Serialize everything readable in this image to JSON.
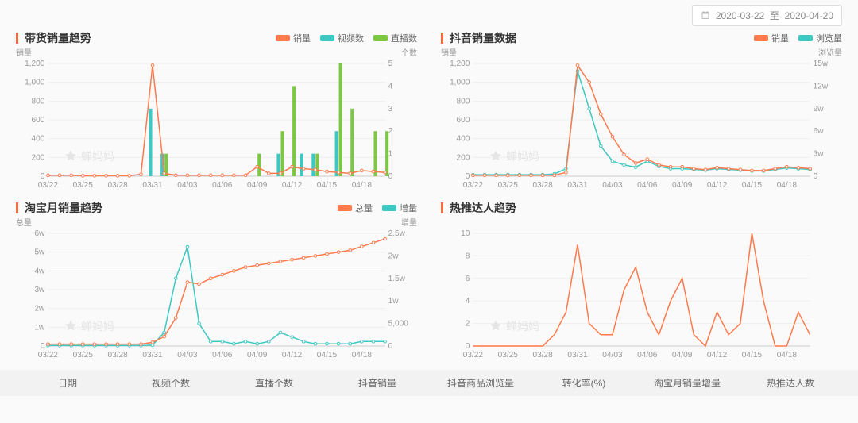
{
  "date_range": {
    "from": "2020-03-22",
    "sep": "至",
    "to": "2020-04-20"
  },
  "colors": {
    "orange": "#ff7b4d",
    "teal": "#3dc9c3",
    "green": "#7cc843",
    "grid": "#eeeeee",
    "axis": "#cccccc",
    "text": "#999999",
    "bg": "#fafafa"
  },
  "x_categories": [
    "03/22",
    "03/25",
    "03/28",
    "03/31",
    "04/03",
    "04/06",
    "04/09",
    "04/12",
    "04/15",
    "04/18"
  ],
  "watermark": "蝉妈妈",
  "chart1": {
    "title": "带货销量趋势",
    "y_left_label": "销量",
    "y_right_label": "个数",
    "legend": [
      {
        "name": "销量",
        "color": "#ff7b4d",
        "type": "line"
      },
      {
        "name": "视频数",
        "color": "#3dc9c3",
        "type": "bar"
      },
      {
        "name": "直播数",
        "color": "#7cc843",
        "type": "bar"
      }
    ],
    "y_left": {
      "min": 0,
      "max": 1200,
      "step": 200,
      "ticks": [
        "0",
        "200",
        "400",
        "600",
        "800",
        "1,000",
        "1,200"
      ]
    },
    "y_right": {
      "min": 0,
      "max": 5,
      "step": 1,
      "ticks": [
        "0",
        "1",
        "2",
        "3",
        "4",
        "5"
      ]
    },
    "series_sales": [
      10,
      10,
      10,
      5,
      5,
      5,
      5,
      5,
      20,
      1180,
      30,
      10,
      10,
      10,
      10,
      10,
      10,
      10,
      100,
      30,
      30,
      100,
      80,
      70,
      50,
      40,
      30,
      60,
      50,
      40
    ],
    "series_video": [
      0,
      0,
      0,
      0,
      0,
      0,
      0,
      0,
      0,
      3,
      1,
      0,
      0,
      0,
      0,
      0,
      0,
      0,
      0,
      0,
      1,
      0,
      1,
      1,
      0,
      2,
      0,
      0,
      0,
      0
    ],
    "series_live": [
      0,
      0,
      0,
      0,
      0,
      0,
      0,
      0,
      0,
      0,
      1,
      0,
      0,
      0,
      0,
      0,
      0,
      0,
      1,
      0,
      2,
      4,
      0,
      1,
      0,
      5,
      3,
      0,
      2,
      2
    ]
  },
  "chart2": {
    "title": "抖音销量数据",
    "y_left_label": "销量",
    "y_right_label": "浏览量",
    "legend": [
      {
        "name": "销量",
        "color": "#ff7b4d",
        "type": "line"
      },
      {
        "name": "浏览量",
        "color": "#3dc9c3",
        "type": "line"
      }
    ],
    "y_left": {
      "min": 0,
      "max": 1200,
      "step": 200,
      "ticks": [
        "0",
        "200",
        "400",
        "600",
        "800",
        "1,000",
        "1,200"
      ]
    },
    "y_right": {
      "min": 0,
      "max": 15,
      "step": 3,
      "ticks": [
        "0",
        "3w",
        "6w",
        "9w",
        "12w",
        "15w"
      ]
    },
    "series_sales": [
      10,
      10,
      10,
      10,
      10,
      10,
      10,
      10,
      40,
      1180,
      1000,
      660,
      420,
      230,
      140,
      180,
      120,
      100,
      100,
      80,
      70,
      90,
      80,
      70,
      60,
      60,
      80,
      100,
      90,
      80
    ],
    "series_views": [
      0.2,
      0.2,
      0.2,
      0.2,
      0.2,
      0.2,
      0.2,
      0.3,
      1,
      14,
      9,
      4,
      2,
      1.5,
      1.2,
      2,
      1.3,
      1,
      1,
      0.9,
      0.8,
      1,
      0.9,
      0.8,
      0.7,
      0.7,
      0.9,
      1.1,
      1,
      0.9
    ]
  },
  "chart3": {
    "title": "淘宝月销量趋势",
    "y_left_label": "总量",
    "y_right_label": "增量",
    "legend": [
      {
        "name": "总量",
        "color": "#ff7b4d",
        "type": "line"
      },
      {
        "name": "增量",
        "color": "#3dc9c3",
        "type": "line"
      }
    ],
    "y_left": {
      "min": 0,
      "max": 6,
      "step": 1,
      "ticks": [
        "0",
        "1w",
        "2w",
        "3w",
        "4w",
        "5w",
        "6w"
      ]
    },
    "y_right": {
      "min": 0,
      "max": 2.5,
      "step": 0.5,
      "ticks": [
        "0",
        "5,000",
        "1w",
        "1.5w",
        "2w",
        "2.5w"
      ]
    },
    "series_total": [
      0.1,
      0.1,
      0.1,
      0.1,
      0.1,
      0.1,
      0.1,
      0.1,
      0.1,
      0.2,
      0.5,
      1.5,
      3.4,
      3.3,
      3.6,
      3.8,
      4.0,
      4.2,
      4.3,
      4.4,
      4.5,
      4.6,
      4.7,
      4.8,
      4.9,
      5.0,
      5.1,
      5.3,
      5.5,
      5.7
    ],
    "series_inc": [
      0.01,
      0.01,
      0.01,
      0.01,
      0.01,
      0.01,
      0.01,
      0.01,
      0.01,
      0.02,
      0.3,
      1.5,
      2.2,
      0.5,
      0.1,
      0.1,
      0.05,
      0.1,
      0.05,
      0.1,
      0.3,
      0.2,
      0.1,
      0.05,
      0.05,
      0.05,
      0.05,
      0.1,
      0.1,
      0.1
    ]
  },
  "chart4": {
    "title": "热推达人趋势",
    "legend": [],
    "y_left": {
      "min": 0,
      "max": 10,
      "step": 2,
      "ticks": [
        "0",
        "2",
        "4",
        "6",
        "8",
        "10"
      ]
    },
    "series": [
      0,
      0,
      0,
      0,
      0,
      0,
      0,
      1,
      3,
      9,
      2,
      1,
      1,
      5,
      7,
      3,
      1,
      4,
      6,
      1,
      0,
      3,
      1,
      2,
      10,
      4,
      0,
      0,
      3,
      1
    ],
    "color": "#ff7b4d"
  },
  "table_columns": [
    "日期",
    "视频个数",
    "直播个数",
    "抖音销量",
    "抖音商品浏览量",
    "转化率(%)",
    "淘宝月销量增量",
    "热推达人数"
  ]
}
